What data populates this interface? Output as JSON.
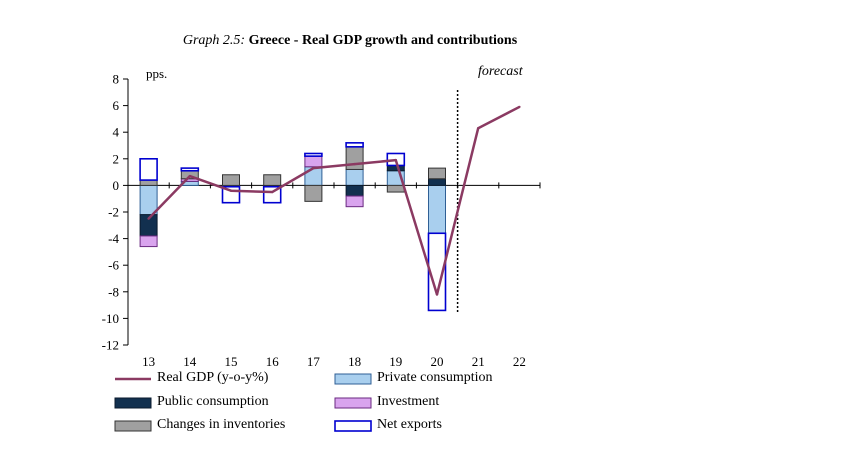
{
  "chart_data": {
    "type": "bar",
    "title_prefix": "Graph 2.5:",
    "title": "Greece - Real GDP growth and contributions",
    "ylabel": "pps.",
    "annotation": "forecast",
    "ylim": [
      -12,
      8
    ],
    "yticks": [
      8,
      6,
      4,
      2,
      0,
      -2,
      -4,
      -6,
      -8,
      -10,
      -12
    ],
    "categories": [
      "13",
      "14",
      "15",
      "16",
      "17",
      "18",
      "19",
      "20",
      "21",
      "22"
    ],
    "forecast_start_index": 8,
    "stacked": true,
    "series": [
      {
        "name": "Private consumption",
        "kind": "bar",
        "color": "#a9cfee",
        "border": "#2f5f95",
        "values": [
          -2.2,
          0.3,
          -0.1,
          0.0,
          1.4,
          1.2,
          1.1,
          -3.6,
          null,
          null
        ]
      },
      {
        "name": "Public consumption",
        "kind": "bar",
        "color": "#12304f",
        "border": "#0a1a2c",
        "values": [
          -1.6,
          0.0,
          0.0,
          -0.1,
          0.0,
          -0.8,
          0.4,
          0.5,
          null,
          null
        ]
      },
      {
        "name": "Investment",
        "kind": "bar",
        "color": "#d9a4ee",
        "border": "#6a2a80",
        "values": [
          -0.8,
          0.2,
          0.0,
          0.0,
          0.8,
          -0.8,
          0.0,
          0.0,
          null,
          null
        ]
      },
      {
        "name": "Changes in inventories",
        "kind": "bar",
        "color": "#a0a0a0",
        "border": "#333333",
        "values": [
          0.4,
          0.6,
          0.8,
          0.8,
          -1.2,
          1.7,
          -0.5,
          0.8,
          null,
          null
        ]
      },
      {
        "name": "Net exports",
        "kind": "bar",
        "color": "#ffffff",
        "border": "#0000d0",
        "values": [
          1.6,
          0.2,
          -1.2,
          -1.2,
          0.2,
          0.3,
          0.9,
          -5.8,
          null,
          null
        ]
      },
      {
        "name": "Real GDP (y-o-y%)",
        "kind": "line",
        "color": "#8b3a62",
        "values": [
          -2.5,
          0.7,
          -0.4,
          -0.5,
          1.3,
          1.6,
          1.9,
          -8.2,
          4.3,
          5.9
        ]
      }
    ]
  },
  "legend": [
    {
      "label": "Real GDP (y-o-y%)",
      "series": "Real GDP (y-o-y%)"
    },
    {
      "label": "Private consumption",
      "series": "Private consumption"
    },
    {
      "label": "Public consumption",
      "series": "Public consumption"
    },
    {
      "label": "Investment",
      "series": "Investment"
    },
    {
      "label": "Changes in inventories",
      "series": "Changes in inventories"
    },
    {
      "label": "Net exports",
      "series": "Net exports"
    }
  ]
}
